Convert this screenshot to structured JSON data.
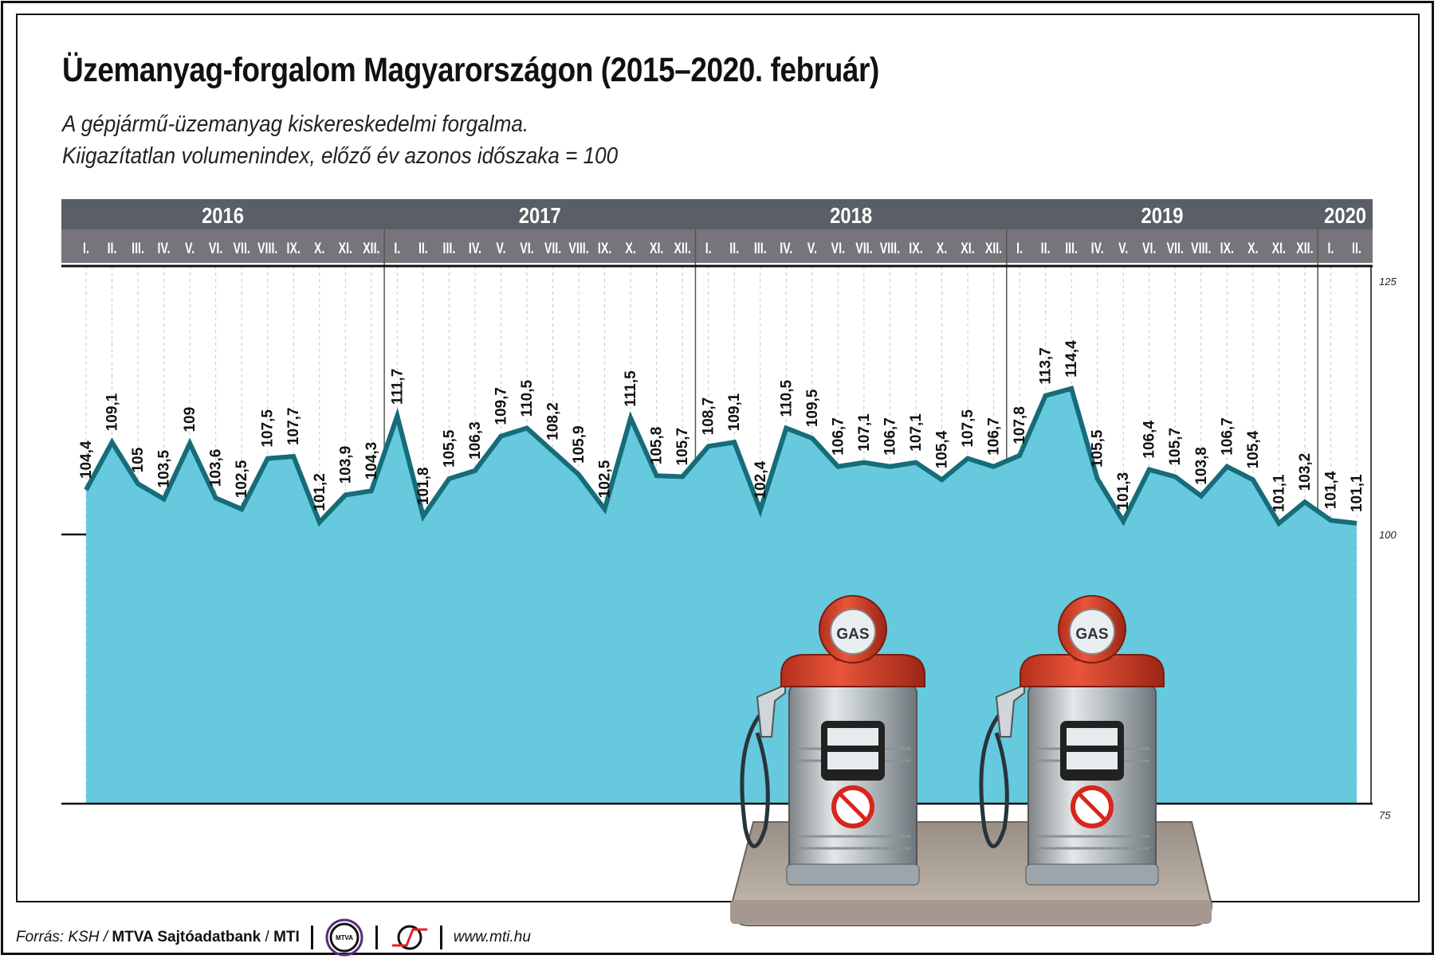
{
  "title": "Üzemanyag-forgalom Magyarországon (2015–2020. február)",
  "subtitle_lines": [
    "A gépjármű-üzemanyag kiskereskedelmi forgalma.",
    "Kiigazítatlan volumenindex, előző év azonos időszaka = 100"
  ],
  "footer": {
    "source_prefix": "Forrás: KSH / ",
    "source_bold": "MTVA Sajtóadatbank",
    "sep": " / ",
    "source_bold2": "MTI",
    "logo1_text": "MTVA",
    "url": "www.mti.hu"
  },
  "pump_label": "GAS",
  "colors": {
    "fill": "#66c9de",
    "line": "#166c78",
    "year_band": "#5a5e67",
    "month_band": "#77747b"
  },
  "chart_data": {
    "type": "area",
    "title": "Üzemanyag-forgalom Magyarországon (2015–2020. február)",
    "ylim": [
      75,
      125
    ],
    "yticks": [
      "125",
      "100",
      "75"
    ],
    "ytick_values": [
      125,
      100,
      75
    ],
    "years": [
      {
        "label": "2016",
        "months": [
          "I.",
          "II.",
          "III.",
          "IV.",
          "V.",
          "VI.",
          "VII.",
          "VIII.",
          "IX.",
          "X.",
          "XI.",
          "XII."
        ]
      },
      {
        "label": "2017",
        "months": [
          "I.",
          "II.",
          "III.",
          "IV.",
          "V.",
          "VI.",
          "VII.",
          "VIII.",
          "IX.",
          "X.",
          "XI.",
          "XII."
        ]
      },
      {
        "label": "2018",
        "months": [
          "I.",
          "II.",
          "III.",
          "IV.",
          "V.",
          "VI.",
          "VII.",
          "VIII.",
          "IX.",
          "X.",
          "XI.",
          "XII."
        ]
      },
      {
        "label": "2019",
        "months": [
          "I.",
          "II.",
          "III.",
          "IV.",
          "V.",
          "VI.",
          "VII.",
          "VIII.",
          "IX.",
          "X.",
          "XI.",
          "XII."
        ]
      },
      {
        "label": "2020",
        "months": [
          "I.",
          "II."
        ]
      }
    ],
    "values": [
      104.4,
      109.1,
      105,
      103.5,
      109,
      103.6,
      102.5,
      107.5,
      107.7,
      101.2,
      103.9,
      104.3,
      111.7,
      101.8,
      105.5,
      106.3,
      109.7,
      110.5,
      108.2,
      105.9,
      102.5,
      111.5,
      105.8,
      105.7,
      108.7,
      109.1,
      102.4,
      110.5,
      109.5,
      106.7,
      107.1,
      106.7,
      107.1,
      105.4,
      107.5,
      106.7,
      107.8,
      113.7,
      114.4,
      105.5,
      101.3,
      106.4,
      105.7,
      103.8,
      106.7,
      105.4,
      101.1,
      103.2,
      101.4,
      101.1
    ],
    "value_labels": [
      "104,4",
      "109,1",
      "105",
      "103,5",
      "109",
      "103,6",
      "102,5",
      "107,5",
      "107,7",
      "101,2",
      "103,9",
      "104,3",
      "111,7",
      "101,8",
      "105,5",
      "106,3",
      "109,7",
      "110,5",
      "108,2",
      "105,9",
      "102,5",
      "111,5",
      "105,8",
      "105,7",
      "108,7",
      "109,1",
      "102,4",
      "110,5",
      "109,5",
      "106,7",
      "107,1",
      "106,7",
      "107,1",
      "105,4",
      "107,5",
      "106,7",
      "107,8",
      "113,7",
      "114,4",
      "105,5",
      "101,3",
      "106,4",
      "105,7",
      "103,8",
      "106,7",
      "105,4",
      "101,1",
      "103,2",
      "101,4",
      "101,1"
    ]
  }
}
